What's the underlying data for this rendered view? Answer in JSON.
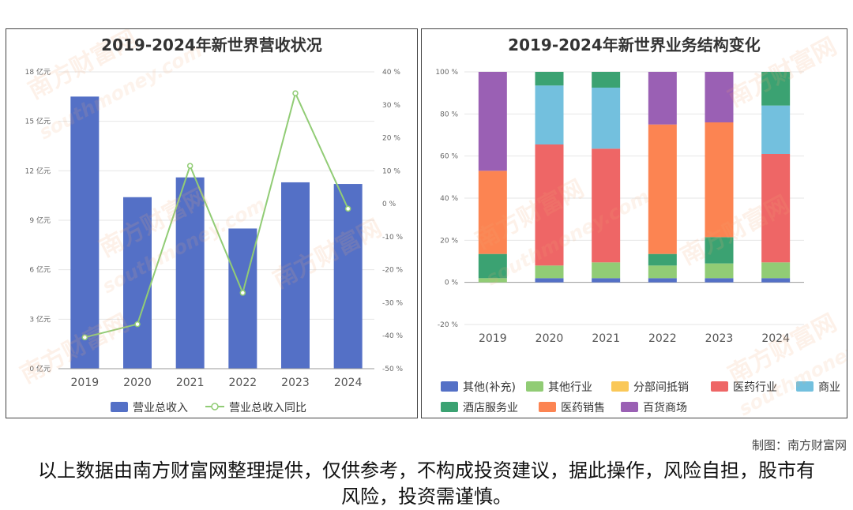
{
  "left_chart": {
    "title": "2019-2024年新世界营收状况",
    "categories": [
      "2019",
      "2020",
      "2021",
      "2022",
      "2023",
      "2024"
    ],
    "y_left_ticks": [
      "0 亿元",
      "3 亿元",
      "6 亿元",
      "9 亿元",
      "12 亿元",
      "15 亿元",
      "18 亿元"
    ],
    "y_right_ticks": [
      "-50 %",
      "-40 %",
      "-30 %",
      "-20 %",
      "-10 %",
      "0 %",
      "10 %",
      "20 %",
      "30 %",
      "40 %"
    ],
    "legend": [
      "营业总收入",
      "营业总收入同比"
    ]
  },
  "right_chart": {
    "title": "2019-2024年新世界业务结构变化",
    "categories": [
      "2019",
      "2020",
      "2021",
      "2022",
      "2023",
      "2024"
    ],
    "y_ticks": [
      "-20 %",
      "0 %",
      "20 %",
      "40 %",
      "60 %",
      "80 %",
      "100 %"
    ],
    "legend": [
      "其他(补充)",
      "其他行业",
      "分部间抵销",
      "医药行业",
      "商业",
      "酒店服务业",
      "医药销售",
      "百货商场"
    ]
  },
  "chart_data": [
    {
      "type": "bar",
      "title": "2019-2024年新世界营收状况",
      "categories": [
        "2019",
        "2020",
        "2021",
        "2022",
        "2023",
        "2024"
      ],
      "ylim": [
        0,
        18
      ],
      "y2lim": [
        -50,
        40
      ],
      "series": [
        {
          "name": "营业总收入",
          "type": "bar",
          "axis": "left",
          "color": "#5470c6",
          "values": [
            16.5,
            10.4,
            11.6,
            8.5,
            11.3,
            11.2
          ]
        },
        {
          "name": "营业总收入同比",
          "type": "line",
          "axis": "right",
          "color": "#91cc75",
          "values": [
            -40.5,
            -36.5,
            11.5,
            -27,
            33.5,
            -1.5
          ]
        }
      ],
      "legend_position": "bottom"
    },
    {
      "type": "bar",
      "stacked": true,
      "title": "2019-2024年新世界业务结构变化",
      "categories": [
        "2019",
        "2020",
        "2021",
        "2022",
        "2023",
        "2024"
      ],
      "ylim": [
        -20,
        100
      ],
      "series": [
        {
          "name": "其他(补充)",
          "color": "#5470c6",
          "values": [
            0,
            2,
            2,
            2,
            2,
            2
          ]
        },
        {
          "name": "其他行业",
          "color": "#91cc75",
          "values": [
            2,
            6,
            7.5,
            6,
            7,
            7.5
          ]
        },
        {
          "name": "分部间抵销",
          "color": "#fac858",
          "values": [
            0,
            0,
            0,
            0,
            0,
            0
          ]
        },
        {
          "name": "医药行业",
          "color": "#ee6666",
          "values": [
            0,
            57.5,
            54,
            0,
            0,
            51.5
          ]
        },
        {
          "name": "商业",
          "color": "#73c0de",
          "values": [
            0,
            28,
            29,
            0,
            0,
            23
          ]
        },
        {
          "name": "酒店服务业",
          "color": "#3ba272",
          "values": [
            11.5,
            6.5,
            7.5,
            5.5,
            12.5,
            16
          ]
        },
        {
          "name": "医药销售",
          "color": "#fc8452",
          "values": [
            39.5,
            0,
            0,
            61.5,
            54.5,
            0
          ]
        },
        {
          "name": "百货商场",
          "color": "#9a60b4",
          "values": [
            47,
            0,
            0,
            25,
            24,
            0
          ]
        }
      ],
      "legend_position": "bottom"
    }
  ],
  "watermark": {
    "brand": "南方财富网",
    "domain": "southmoney.com"
  },
  "footer": {
    "credit": "制图：南方财富网",
    "disclaimer": "以上数据由南方财富网整理提供，仅供参考，不构成投资建议，据此操作，风险自担，股市有风险，投资需谨慎。"
  }
}
